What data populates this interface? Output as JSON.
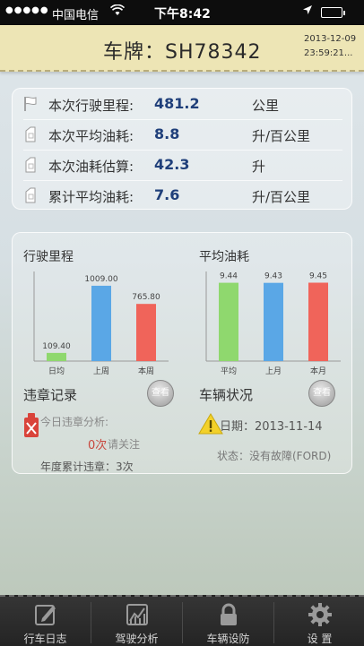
{
  "status_bar": {
    "signal": "●●●●●",
    "carrier": "中国电信",
    "time": "下午8:42"
  },
  "header": {
    "title": "车牌：SH78342",
    "date": "2013-12-09",
    "time": "23:59:21..."
  },
  "stats": [
    {
      "label": "本次行驶里程:",
      "value": "481.2",
      "unit": "公里",
      "icon": "flag-icon"
    },
    {
      "label": "本次平均油耗:",
      "value": "8.8",
      "unit": "升/百公里",
      "icon": "fuel-can-icon"
    },
    {
      "label": "本次油耗估算:",
      "value": "42.3",
      "unit": "升",
      "icon": "fuel-can-icon"
    },
    {
      "label": "累计平均油耗:",
      "value": "7.6",
      "unit": "升/百公里",
      "icon": "fuel-can-icon"
    }
  ],
  "chart_data": [
    {
      "type": "bar",
      "title": "行驶里程",
      "categories": [
        "日均",
        "上周",
        "本周"
      ],
      "values": [
        109.4,
        1009.0,
        765.8
      ],
      "labels": [
        "109.40",
        "1009.00",
        "765.80"
      ],
      "colors": [
        "#8fd86e",
        "#5aa7e6",
        "#f0645a"
      ],
      "ylim": [
        0,
        1200
      ]
    },
    {
      "type": "bar",
      "title": "平均油耗",
      "categories": [
        "平均",
        "上月",
        "本月"
      ],
      "values": [
        9.44,
        9.43,
        9.45
      ],
      "labels": [
        "9.44",
        "9.43",
        "9.45"
      ],
      "colors": [
        "#8fd86e",
        "#5aa7e6",
        "#f0645a"
      ],
      "ylim": [
        0,
        10.8
      ]
    }
  ],
  "violations": {
    "title": "违章记录",
    "view_label": "查看",
    "today_label": "今日违章分析:",
    "today_count": "0次",
    "today_note": "请关注",
    "yearly": "年度累计违章：3次"
  },
  "vehicle": {
    "title": "车辆状况",
    "view_label": "查看",
    "date": "日期：2013-11-14",
    "status": "状态：没有故障(FORD)"
  },
  "tabs": [
    {
      "label": "行车日志",
      "icon": "logbook-icon"
    },
    {
      "label": "驾驶分析",
      "icon": "analysis-chart-icon"
    },
    {
      "label": "车辆设防",
      "icon": "lock-icon"
    },
    {
      "label": "设 置",
      "icon": "gear-icon"
    }
  ]
}
